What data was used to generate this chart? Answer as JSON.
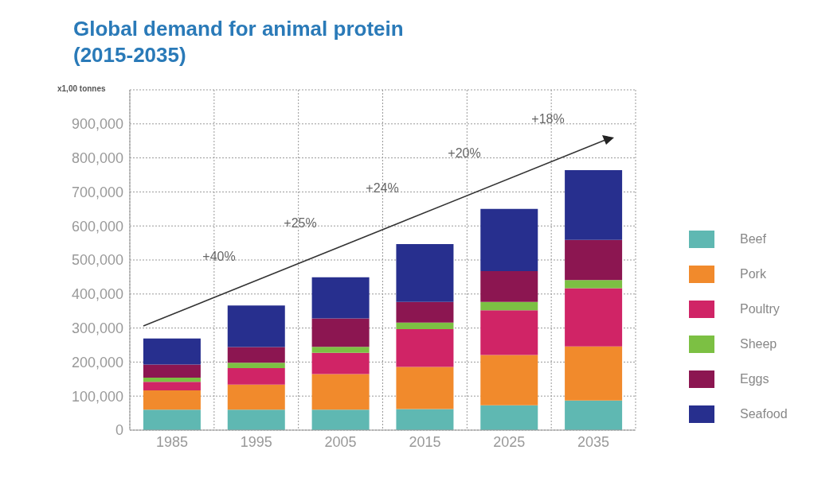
{
  "chart_data": {
    "type": "bar",
    "title": "Global demand for animal protein (2015-2035)",
    "ylabel": "x1,00 tonnes",
    "categories": [
      "1985",
      "1995",
      "2005",
      "2015",
      "2025",
      "2035"
    ],
    "stacked": true,
    "series": [
      {
        "name": "Beef",
        "color": "#5fb8b2",
        "values": [
          60000,
          60000,
          60000,
          62000,
          73000,
          87000
        ]
      },
      {
        "name": "Pork",
        "color": "#f18a2c",
        "values": [
          57000,
          74000,
          105000,
          124000,
          148000,
          159000
        ]
      },
      {
        "name": "Poultry",
        "color": "#d02466",
        "values": [
          25000,
          48000,
          62000,
          111000,
          131000,
          171000
        ]
      },
      {
        "name": "Sheep",
        "color": "#7cc043",
        "values": [
          12000,
          16000,
          18000,
          19000,
          25000,
          24000
        ]
      },
      {
        "name": "Eggs",
        "color": "#8c1651",
        "values": [
          39000,
          46000,
          83000,
          61000,
          90000,
          118000
        ]
      },
      {
        "name": "Seafood",
        "color": "#272f8e",
        "values": [
          76000,
          122000,
          121000,
          170000,
          183000,
          205000
        ]
      }
    ],
    "ylim": [
      0,
      1000000
    ],
    "yticks": [
      0,
      {
        "value": 100000,
        "label": "100,000"
      },
      {
        "value": 200000,
        "label": "200,000"
      },
      {
        "value": 300000,
        "label": "300,000"
      },
      {
        "value": 400000,
        "label": "400,000"
      },
      {
        "value": 500000,
        "label": "500,000"
      },
      {
        "value": 600000,
        "label": "600,000"
      },
      {
        "value": 700000,
        "label": "700,000"
      },
      {
        "value": 800000,
        "label": "800,000"
      },
      {
        "value": 900000,
        "label": "900,000"
      },
      {
        "value": 1000000,
        "label": null
      }
    ],
    "grid": true,
    "legend": "right",
    "annotations": [
      "+40%",
      "+25%",
      "+24%",
      "+20%",
      "+18%"
    ]
  }
}
